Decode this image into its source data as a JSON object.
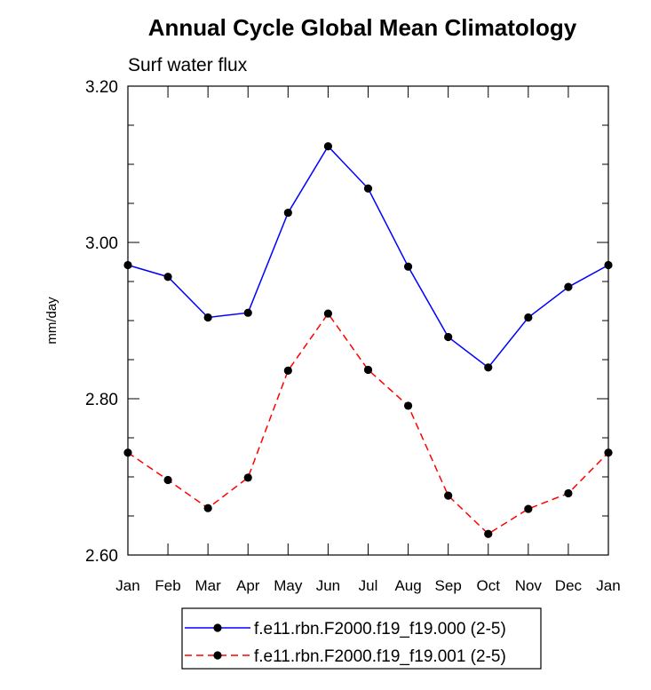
{
  "chart_data": {
    "type": "line",
    "title": "Annual Cycle Global Mean Climatology",
    "subtitle": "Surf water flux",
    "xlabel": "",
    "ylabel": "mm/day",
    "categories": [
      "Jan",
      "Feb",
      "Mar",
      "Apr",
      "May",
      "Jun",
      "Jul",
      "Aug",
      "Sep",
      "Oct",
      "Nov",
      "Dec",
      "Jan"
    ],
    "ylim": [
      2.6,
      3.2
    ],
    "yticks": [
      2.6,
      2.8,
      3.0,
      3.2
    ],
    "ytick_labels": [
      "2.60",
      "2.80",
      "3.00",
      "3.20"
    ],
    "grid": false,
    "legend_position": "bottom-center",
    "series": [
      {
        "name": "f.e11.rbn.F2000.f19_f19.000 (2-5)",
        "color": "#0000ff",
        "dash": "solid",
        "values": [
          2.971,
          2.956,
          2.904,
          2.91,
          3.038,
          3.123,
          3.069,
          2.969,
          2.879,
          2.84,
          2.904,
          2.943,
          2.971
        ]
      },
      {
        "name": "f.e11.rbn.F2000.f19_f19.001 (2-5)",
        "color": "#ff0000",
        "dash": "dashed",
        "values": [
          2.731,
          2.696,
          2.66,
          2.699,
          2.836,
          2.909,
          2.837,
          2.791,
          2.676,
          2.627,
          2.659,
          2.679,
          2.731
        ]
      }
    ]
  }
}
